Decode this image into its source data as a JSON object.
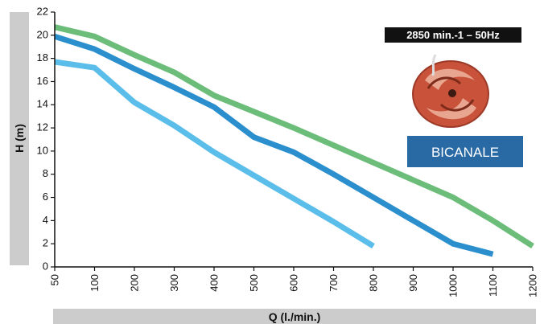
{
  "chart_data": {
    "type": "line",
    "xlabel": "Q (l./min.)",
    "ylabel": "H (m)",
    "x_ticks": [
      50,
      100,
      200,
      300,
      400,
      500,
      600,
      700,
      800,
      900,
      1000,
      1100,
      1200
    ],
    "y_ticks": [
      0,
      2,
      4,
      6,
      8,
      10,
      12,
      14,
      16,
      18,
      20,
      22
    ],
    "xlim": [
      50,
      1200
    ],
    "ylim": [
      0,
      22
    ],
    "grid": false,
    "series": [
      {
        "color": "#6cbd7a",
        "points": [
          [
            50,
            20.7
          ],
          [
            100,
            19.9
          ],
          [
            200,
            18.3
          ],
          [
            300,
            16.8
          ],
          [
            400,
            14.8
          ],
          [
            500,
            13.4
          ],
          [
            600,
            12.0
          ],
          [
            700,
            10.5
          ],
          [
            800,
            9.0
          ],
          [
            900,
            7.5
          ],
          [
            1000,
            6.0
          ],
          [
            1100,
            4.0
          ],
          [
            1200,
            1.8
          ]
        ]
      },
      {
        "color": "#2b8fce",
        "points": [
          [
            50,
            19.9
          ],
          [
            100,
            18.8
          ],
          [
            200,
            17.1
          ],
          [
            300,
            15.5
          ],
          [
            400,
            13.8
          ],
          [
            500,
            11.2
          ],
          [
            600,
            9.9
          ],
          [
            700,
            8.0
          ],
          [
            800,
            6.0
          ],
          [
            900,
            4.0
          ],
          [
            1000,
            2.0
          ],
          [
            1100,
            1.1
          ]
        ]
      },
      {
        "color": "#5bbde9",
        "points": [
          [
            50,
            17.7
          ],
          [
            100,
            17.2
          ],
          [
            200,
            14.2
          ],
          [
            300,
            12.2
          ],
          [
            400,
            9.9
          ],
          [
            500,
            7.9
          ],
          [
            600,
            5.9
          ],
          [
            700,
            3.9
          ],
          [
            800,
            1.8
          ]
        ]
      }
    ]
  },
  "badge": {
    "label": "2850 min.-1 – 50Hz"
  },
  "tag": {
    "label": "BICANALE"
  },
  "colors": {
    "axis_band": "#cccccc",
    "badge_bg": "#111111",
    "tag_bg": "#2a6aa4",
    "impeller": "#c9523a"
  }
}
